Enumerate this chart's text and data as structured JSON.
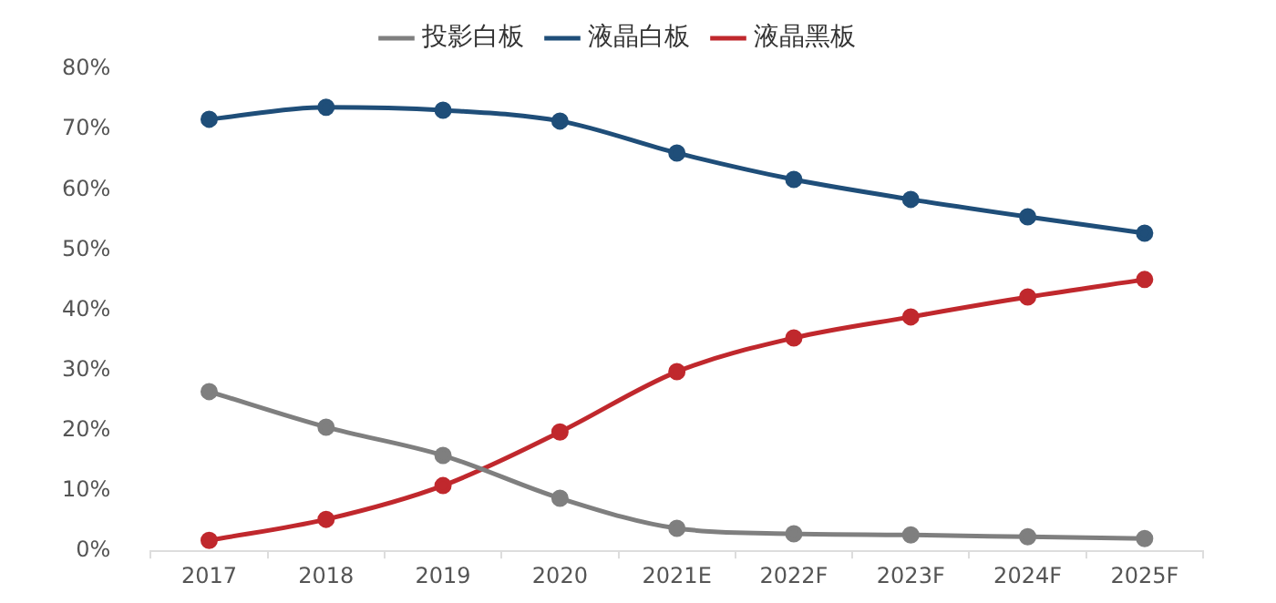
{
  "chart_data": {
    "type": "line",
    "categories": [
      "2017",
      "2018",
      "2019",
      "2020",
      "2021E",
      "2022F",
      "2023F",
      "2024F",
      "2025F"
    ],
    "series": [
      {
        "name": "投影白板",
        "color": "#7f7f7f",
        "values": [
          26.5,
          20.6,
          15.9,
          8.8,
          3.8,
          2.9,
          2.7,
          2.4,
          2.1
        ]
      },
      {
        "name": "液晶白板",
        "color": "#1f4e79",
        "values": [
          71.7,
          73.7,
          73.2,
          71.4,
          66.1,
          61.7,
          58.4,
          55.5,
          52.8
        ]
      },
      {
        "name": "液晶黑板",
        "color": "#c0282d",
        "values": [
          1.8,
          5.3,
          10.9,
          19.8,
          29.8,
          35.4,
          38.9,
          42.2,
          45.1
        ]
      }
    ],
    "ylim": [
      0,
      80
    ],
    "yticks": [
      {
        "value": 0,
        "label": "0%"
      },
      {
        "value": 10,
        "label": "10%"
      },
      {
        "value": 20,
        "label": "20%"
      },
      {
        "value": 30,
        "label": "30%"
      },
      {
        "value": 40,
        "label": "40%"
      },
      {
        "value": 50,
        "label": "50%"
      },
      {
        "value": 60,
        "label": "60%"
      },
      {
        "value": 70,
        "label": "70%"
      },
      {
        "value": 80,
        "label": "80%"
      }
    ],
    "grid": false,
    "legend": "top",
    "marker": "circle",
    "line_style": "solid"
  }
}
